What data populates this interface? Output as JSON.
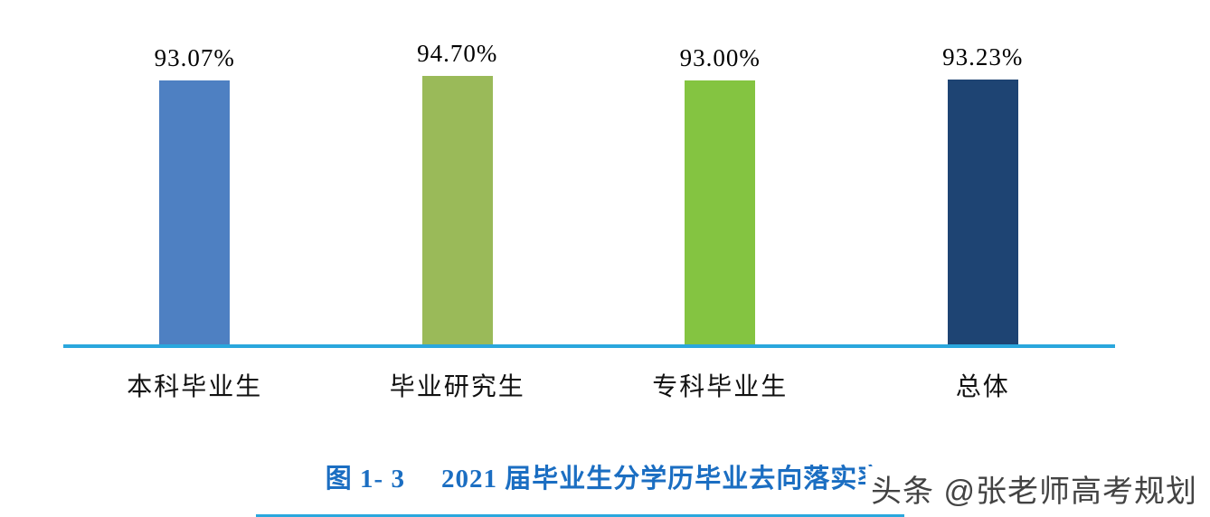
{
  "chart_data": {
    "type": "bar",
    "title": "图 1- 3　2021 届毕业生分学历毕业去向落实率",
    "title_prefix": "图 1- 3",
    "title_main": "2021 届毕业生分学历毕业去向落实率",
    "title_color": "#1b6ec2",
    "categories": [
      "本科毕业生",
      "毕业研究生",
      "专科毕业生",
      "总体"
    ],
    "values": [
      93.07,
      94.7,
      93.0,
      93.23
    ],
    "value_labels": [
      "93.07%",
      "94.70%",
      "93.00%",
      "93.23%"
    ],
    "bar_colors": [
      "#4e80c2",
      "#9aba59",
      "#84c441",
      "#1e4473"
    ],
    "ylim": [
      0,
      100
    ],
    "xlabel": "",
    "ylabel": "",
    "grid": false,
    "legend": "none",
    "axis_line_color": "#2aa7dd"
  },
  "watermark": {
    "text": "头条 @张老师高考规划",
    "color": "#434343"
  }
}
